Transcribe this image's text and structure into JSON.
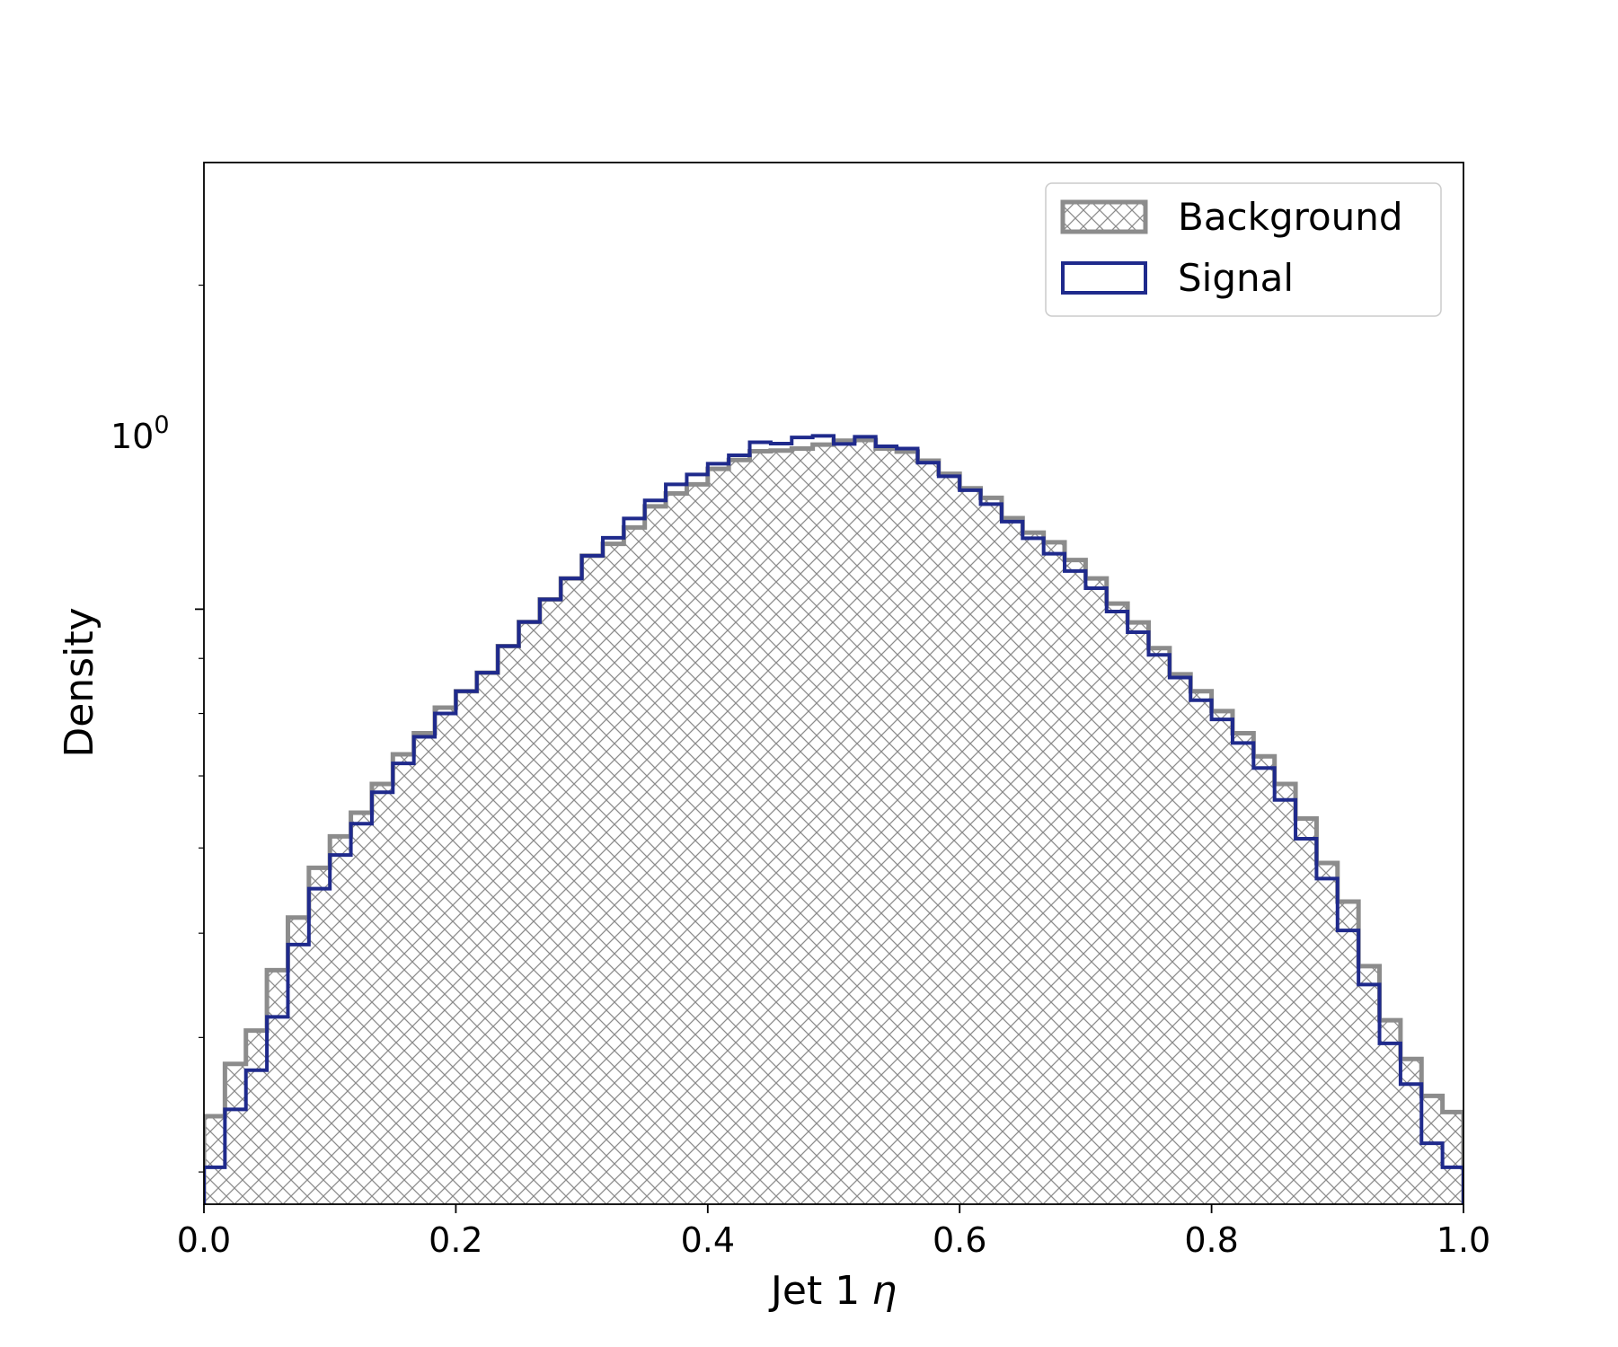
{
  "chart_data": {
    "type": "histogram",
    "xlabel_main": "Jet 1",
    "xlabel_symbol": "η",
    "ylabel": "Density",
    "xlim": [
      0.0,
      1.0
    ],
    "ylim": [
      0.28,
      2.6
    ],
    "yscale": "log",
    "x_ticks": [
      "0.0",
      "0.2",
      "0.4",
      "0.6",
      "0.8",
      "1.0"
    ],
    "y_tick_base": "10",
    "y_tick_exponent": "0",
    "legend_position": "upper-right",
    "bin_edges_count": 61,
    "colors": {
      "background": "#8c8c8c",
      "signal": "#1f2a8c"
    },
    "series": [
      {
        "name": "Background",
        "style": "hatched-filled-step",
        "values": [
          0.338,
          0.378,
          0.406,
          0.462,
          0.517,
          0.575,
          0.615,
          0.647,
          0.688,
          0.733,
          0.767,
          0.81,
          0.839,
          0.873,
          0.924,
          0.973,
          1.021,
          1.068,
          1.121,
          1.15,
          1.191,
          1.246,
          1.281,
          1.306,
          1.35,
          1.376,
          1.402,
          1.404,
          1.41,
          1.422,
          1.434,
          1.436,
          1.41,
          1.401,
          1.374,
          1.336,
          1.295,
          1.269,
          1.215,
          1.178,
          1.154,
          1.111,
          1.068,
          1.012,
          0.972,
          0.92,
          0.87,
          0.839,
          0.804,
          0.767,
          0.73,
          0.688,
          0.639,
          0.581,
          0.535,
          0.466,
          0.415,
          0.382,
          0.353,
          0.341
        ]
      },
      {
        "name": "Signal",
        "style": "step",
        "values": [
          0.303,
          0.343,
          0.373,
          0.418,
          0.488,
          0.55,
          0.591,
          0.632,
          0.676,
          0.719,
          0.761,
          0.8,
          0.839,
          0.873,
          0.924,
          0.973,
          1.021,
          1.068,
          1.121,
          1.165,
          1.214,
          1.262,
          1.306,
          1.334,
          1.365,
          1.39,
          1.429,
          1.425,
          1.444,
          1.449,
          1.424,
          1.446,
          1.417,
          1.41,
          1.368,
          1.329,
          1.29,
          1.252,
          1.206,
          1.164,
          1.126,
          1.085,
          1.046,
          0.995,
          0.952,
          0.907,
          0.864,
          0.823,
          0.79,
          0.751,
          0.712,
          0.665,
          0.612,
          0.562,
          0.503,
          0.448,
          0.395,
          0.362,
          0.319,
          0.303
        ]
      }
    ]
  }
}
